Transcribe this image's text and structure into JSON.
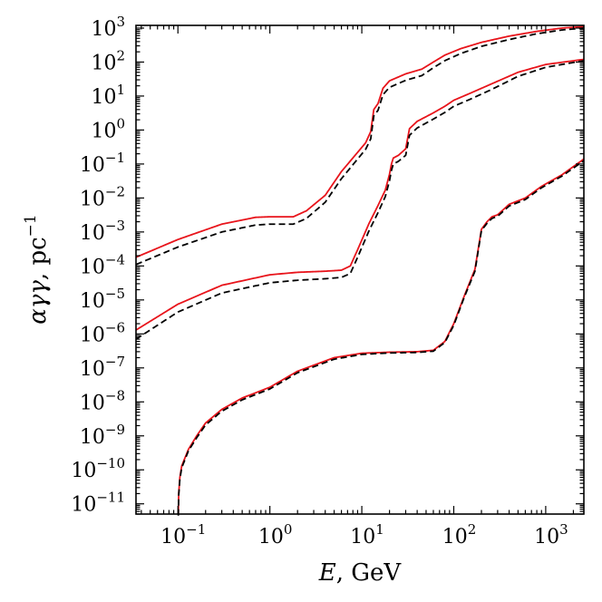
{
  "chart_data": {
    "type": "line",
    "title": "",
    "xscale": "log",
    "yscale": "log",
    "xlim": [
      0.035,
      2600
    ],
    "ylim": [
      5e-12,
      1200
    ],
    "xlabel": {
      "var": "E",
      "unit": ", GeV"
    },
    "ylabel": {
      "var": "αγγ",
      "unit": ", pc",
      "exp": "−1"
    },
    "x_ticks": [
      {
        "value": 0.1,
        "base": "10",
        "exp": "−1"
      },
      {
        "value": 1,
        "base": "10",
        "exp": "0"
      },
      {
        "value": 10,
        "base": "10",
        "exp": "1"
      },
      {
        "value": 100,
        "base": "10",
        "exp": "2"
      },
      {
        "value": 1000,
        "base": "10",
        "exp": "3"
      }
    ],
    "y_ticks": [
      {
        "value": 1e-11,
        "base": "10",
        "exp": "−11"
      },
      {
        "value": 1e-10,
        "base": "10",
        "exp": "−10"
      },
      {
        "value": 1e-09,
        "base": "10",
        "exp": "−9"
      },
      {
        "value": 1e-08,
        "base": "10",
        "exp": "−8"
      },
      {
        "value": 1e-07,
        "base": "10",
        "exp": "−7"
      },
      {
        "value": 1e-06,
        "base": "10",
        "exp": "−6"
      },
      {
        "value": 1e-05,
        "base": "10",
        "exp": "−5"
      },
      {
        "value": 0.0001,
        "base": "10",
        "exp": "−4"
      },
      {
        "value": 0.001,
        "base": "10",
        "exp": "−3"
      },
      {
        "value": 0.01,
        "base": "10",
        "exp": "−2"
      },
      {
        "value": 0.1,
        "base": "10",
        "exp": "−1"
      },
      {
        "value": 1,
        "base": "10",
        "exp": "0"
      },
      {
        "value": 10,
        "base": "10",
        "exp": "1"
      },
      {
        "value": 100,
        "base": "10",
        "exp": "2"
      },
      {
        "value": 1000,
        "base": "10",
        "exp": "3"
      }
    ],
    "series": [
      {
        "name": "upper-solid",
        "color": "#e8141b",
        "style": "solid",
        "x": [
          0.035,
          0.1,
          0.3,
          0.7,
          1.0,
          1.8,
          2.5,
          4,
          6,
          9,
          11,
          12.5,
          13.5,
          15,
          17,
          20,
          30,
          45,
          60,
          80,
          120,
          200,
          400,
          800,
          1500,
          2600
        ],
        "y": [
          0.00018,
          0.0006,
          0.0017,
          0.0027,
          0.0028,
          0.0028,
          0.0042,
          0.012,
          0.06,
          0.22,
          0.42,
          0.9,
          4,
          6,
          17,
          28,
          45,
          62,
          100,
          160,
          250,
          380,
          580,
          800,
          1000,
          1100
        ]
      },
      {
        "name": "upper-dashed",
        "color": "#000000",
        "style": "dashed",
        "x": [
          0.035,
          0.1,
          0.3,
          0.7,
          1.0,
          1.8,
          2.5,
          4,
          6,
          9,
          11,
          12.5,
          13.5,
          15,
          17,
          20,
          30,
          45,
          60,
          80,
          120,
          200,
          400,
          800,
          1500,
          2600
        ],
        "y": [
          0.00011,
          0.00036,
          0.001,
          0.0016,
          0.0017,
          0.0017,
          0.0025,
          0.0075,
          0.037,
          0.14,
          0.27,
          0.55,
          2.6,
          3.8,
          11,
          18,
          29,
          40,
          68,
          110,
          180,
          290,
          460,
          680,
          880,
          1000
        ]
      },
      {
        "name": "middle-solid",
        "color": "#e8141b",
        "style": "solid",
        "x": [
          0.035,
          0.1,
          0.3,
          1.0,
          2.0,
          4.0,
          6.0,
          7.5,
          9,
          12,
          15,
          18,
          20,
          21,
          22,
          25,
          30,
          33,
          40,
          60,
          80,
          100,
          150,
          250,
          500,
          1000,
          2600
        ],
        "y": [
          1.3e-06,
          7.5e-06,
          2.7e-05,
          5.5e-05,
          6.5e-05,
          7e-05,
          7.5e-05,
          0.0001,
          0.0003,
          0.0018,
          0.006,
          0.017,
          0.05,
          0.1,
          0.15,
          0.18,
          0.28,
          1.1,
          1.8,
          3.2,
          5,
          7.5,
          12,
          22,
          50,
          85,
          120
        ]
      },
      {
        "name": "middle-dashed",
        "color": "#000000",
        "style": "dashed",
        "x": [
          0.035,
          0.1,
          0.3,
          1.0,
          2.0,
          4.0,
          6.0,
          7.5,
          9,
          12,
          15,
          18,
          20,
          21,
          22,
          25,
          30,
          33,
          40,
          60,
          80,
          100,
          150,
          250,
          500,
          1000,
          2600
        ],
        "y": [
          7e-07,
          4.4e-06,
          1.6e-05,
          3.2e-05,
          3.8e-05,
          4.2e-05,
          4.6e-05,
          6e-05,
          0.00018,
          0.0011,
          0.0037,
          0.011,
          0.032,
          0.065,
          0.1,
          0.12,
          0.18,
          0.7,
          1.15,
          2.1,
          3.3,
          5,
          8,
          15,
          38,
          70,
          110
        ]
      },
      {
        "name": "lower-solid",
        "color": "#e8141b",
        "style": "solid",
        "x": [
          0.101,
          0.102,
          0.105,
          0.11,
          0.13,
          0.16,
          0.2,
          0.3,
          0.5,
          1.0,
          2.0,
          5.0,
          10,
          20,
          40,
          60,
          80,
          100,
          130,
          170,
          200,
          230,
          260,
          300,
          400,
          600,
          900,
          1500,
          2600
        ],
        "y": [
          5e-12,
          2e-11,
          6e-11,
          1.3e-10,
          4e-10,
          1e-09,
          2.4e-09,
          6e-09,
          1.3e-08,
          2.7e-08,
          8e-08,
          2e-07,
          2.7e-07,
          2.9e-07,
          3e-07,
          3.3e-07,
          6e-07,
          2e-06,
          1.3e-05,
          8e-05,
          0.0012,
          0.002,
          0.0028,
          0.0032,
          0.0065,
          0.01,
          0.022,
          0.048,
          0.14
        ]
      },
      {
        "name": "lower-dashed",
        "color": "#000000",
        "style": "dashed",
        "x": [
          0.101,
          0.102,
          0.105,
          0.11,
          0.13,
          0.16,
          0.2,
          0.3,
          0.5,
          1.0,
          2.0,
          5.0,
          10,
          20,
          40,
          60,
          80,
          100,
          130,
          170,
          200,
          230,
          260,
          300,
          400,
          600,
          900,
          1500,
          2600
        ],
        "y": [
          4.5e-12,
          1.8e-11,
          5.3e-11,
          1.15e-10,
          3.6e-10,
          8.8e-10,
          2.1e-09,
          5.3e-09,
          1.15e-08,
          2.4e-08,
          7.2e-08,
          1.8e-07,
          2.5e-07,
          2.75e-07,
          2.85e-07,
          3.1e-07,
          5.6e-07,
          1.8e-06,
          1.2e-05,
          7e-05,
          0.0011,
          0.0018,
          0.0025,
          0.0029,
          0.0058,
          0.009,
          0.02,
          0.044,
          0.125
        ]
      }
    ]
  }
}
